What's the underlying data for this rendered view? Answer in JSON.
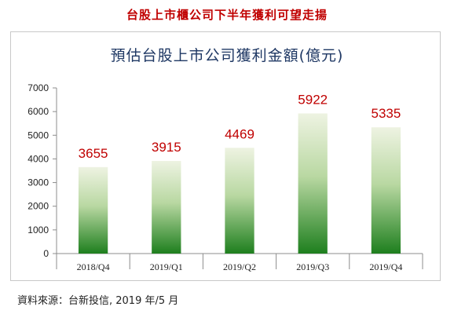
{
  "headline": "台股上市櫃公司下半年獲利可望走揚",
  "source": "資料來源：台新投信, 2019 年/5 月",
  "colors": {
    "headline": "#c00000",
    "title": "#1f3864",
    "value_label": "#c00000",
    "bar_top": "#eef3e2",
    "bar_bottom": "#1e7f1e"
  },
  "chart_data": {
    "type": "bar",
    "title": "預估台股上市公司獲利金額(億元)",
    "categories": [
      "2018/Q4",
      "2019/Q1",
      "2019/Q2",
      "2019/Q3",
      "2019/Q4"
    ],
    "values": [
      3655,
      3915,
      4469,
      5922,
      5335
    ],
    "ylim": [
      0,
      7000
    ],
    "yticks": [
      0,
      1000,
      2000,
      3000,
      4000,
      5000,
      6000,
      7000
    ],
    "xlabel": "",
    "ylabel": "",
    "grid": false,
    "legend": "none"
  }
}
